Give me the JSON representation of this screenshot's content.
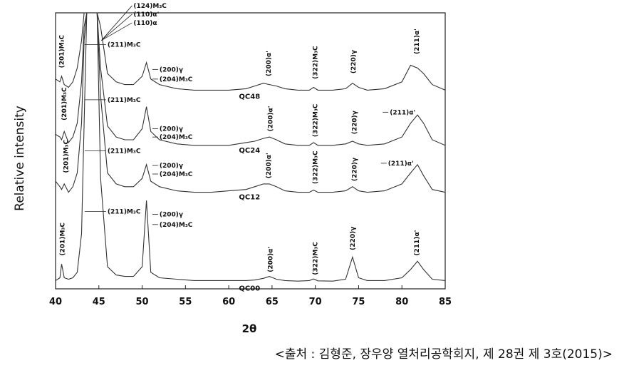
{
  "chart_data": {
    "type": "line",
    "xlabel": "2θ",
    "ylabel": "Relative intensity",
    "caption": "<출처 : 김형준, 장우양 열처리공학회지, 제 28권 제 3호(2015)>",
    "xlim": [
      40,
      85
    ],
    "xticks": [
      40,
      45,
      50,
      55,
      60,
      65,
      70,
      75,
      80,
      85
    ],
    "ylim": [
      0,
      100
    ],
    "x": [
      40,
      40.5,
      40.7,
      41,
      41.5,
      42,
      42.5,
      43,
      43.3,
      43.6,
      44,
      44.4,
      44.8,
      45.2,
      46,
      47,
      48,
      49,
      50,
      50.5,
      51,
      52,
      54,
      56,
      58,
      60,
      62,
      63,
      64,
      64.7,
      65.5,
      66.5,
      68,
      69.3,
      69.8,
      70.3,
      72,
      73.5,
      74.3,
      75,
      76,
      78,
      80,
      81,
      81.8,
      82.5,
      83.5,
      85
    ],
    "series": [
      {
        "name": "QC48",
        "color": "#333333",
        "values": [
          76,
          75,
          77,
          74,
          73,
          75,
          80,
          90,
          100,
          100,
          100,
          100,
          100,
          95,
          78,
          75,
          74,
          74,
          77,
          82,
          76,
          74,
          72.5,
          72,
          72,
          72,
          72.5,
          73.5,
          74.5,
          74,
          73.5,
          72.5,
          72,
          72,
          73,
          72,
          72,
          72.5,
          74.5,
          73,
          72,
          72.5,
          75,
          81,
          80,
          78,
          74,
          72
        ]
      },
      {
        "name": "QC24",
        "color": "#333333",
        "values": [
          56,
          55,
          54,
          57,
          53,
          55,
          60,
          75,
          95,
          100,
          100,
          100,
          100,
          80,
          59,
          55,
          54,
          54,
          58,
          66,
          57,
          54,
          52.5,
          52,
          52,
          52,
          53,
          53.5,
          54.5,
          55,
          54,
          52.5,
          52,
          52,
          53,
          52,
          52,
          52.5,
          53.5,
          52.5,
          52,
          52.5,
          55,
          60,
          63,
          60,
          54,
          52
        ]
      },
      {
        "name": "QC12",
        "color": "#333333",
        "values": [
          39,
          37,
          36,
          38,
          35,
          37,
          42,
          60,
          90,
          100,
          100,
          100,
          100,
          70,
          42,
          38,
          37,
          37,
          40,
          45,
          39,
          37,
          35.5,
          35,
          35,
          35.5,
          36,
          37,
          38,
          38,
          37,
          35.5,
          35,
          35,
          35.8,
          35,
          35,
          35.5,
          37,
          35.5,
          35,
          35.5,
          38,
          42,
          45,
          41,
          36,
          35
        ]
      },
      {
        "name": "QC00",
        "color": "#333333",
        "values": [
          3,
          4,
          9,
          4,
          3.5,
          4,
          6,
          20,
          60,
          100,
          100,
          100,
          100,
          40,
          8,
          5,
          4.5,
          4.5,
          8,
          32,
          6,
          4,
          3.5,
          3,
          3,
          3,
          3,
          3.2,
          3.8,
          4.5,
          3.5,
          3,
          2.8,
          3,
          3.6,
          2.9,
          2.8,
          3.5,
          11.5,
          4,
          3,
          3,
          4,
          7,
          10,
          7,
          3.5,
          3
        ]
      }
    ],
    "peak_labels": [
      {
        "text": "(201)M₃C",
        "x": 40.7,
        "y": 80
      },
      {
        "text": "(200)α'",
        "x": 64.6,
        "y": 77
      },
      {
        "text": "(322)M₃C",
        "x": 70,
        "y": 76
      },
      {
        "text": "(220)γ",
        "x": 74.4,
        "y": 78
      },
      {
        "text": "(211)α'",
        "x": 81.7,
        "y": 85
      },
      {
        "text": "(201)M₃C",
        "x": 41,
        "y": 61
      },
      {
        "text": "(200)α'",
        "x": 64.8,
        "y": 57
      },
      {
        "text": "(322)M₃C",
        "x": 70,
        "y": 55
      },
      {
        "text": "(220)γ",
        "x": 74.5,
        "y": 56
      },
      {
        "text": "(201)M₃C",
        "x": 41.2,
        "y": 42
      },
      {
        "text": "(200)α'",
        "x": 64.6,
        "y": 40
      },
      {
        "text": "(322)M₃C",
        "x": 70,
        "y": 38
      },
      {
        "text": "(220)γ",
        "x": 74.5,
        "y": 39
      },
      {
        "text": "(201)M₃C",
        "x": 40.8,
        "y": 12
      },
      {
        "text": "(200)α'",
        "x": 64.8,
        "y": 6
      },
      {
        "text": "(322)M₃C",
        "x": 70,
        "y": 5
      },
      {
        "text": "(220)γ",
        "x": 74.3,
        "y": 14
      },
      {
        "text": "(211)α'",
        "x": 81.7,
        "y": 12
      }
    ],
    "annotations": [
      {
        "text": "(124)M₃C",
        "x": 49,
        "y": 102.6
      },
      {
        "text": "(110)α'",
        "x": 49,
        "y": 99.5
      },
      {
        "text": "(110)α",
        "x": 49,
        "y": 96.4
      },
      {
        "text": "(211)M₃C",
        "x": 46,
        "y": 88.5
      },
      {
        "text": "(211)M₃C",
        "x": 46,
        "y": 68.5
      },
      {
        "text": "(211)M₃C",
        "x": 46,
        "y": 50
      },
      {
        "text": "(211)M₃C",
        "x": 46,
        "y": 28
      },
      {
        "text": "(200)γ",
        "x": 52,
        "y": 79.5
      },
      {
        "text": "(204)M₃C",
        "x": 52,
        "y": 76
      },
      {
        "text": "(200)γ",
        "x": 52,
        "y": 58
      },
      {
        "text": "(204)M₃C",
        "x": 52,
        "y": 55
      },
      {
        "text": "(200)γ",
        "x": 52,
        "y": 44.7
      },
      {
        "text": "(204)M₃C",
        "x": 52,
        "y": 41.6
      },
      {
        "text": "(200)γ",
        "x": 52,
        "y": 27
      },
      {
        "text": "(204)M₃C",
        "x": 52,
        "y": 23.3
      },
      {
        "text": "(211)α'",
        "x": 78.6,
        "y": 64
      },
      {
        "text": "(211)α'",
        "x": 78.4,
        "y": 45.5
      }
    ]
  }
}
